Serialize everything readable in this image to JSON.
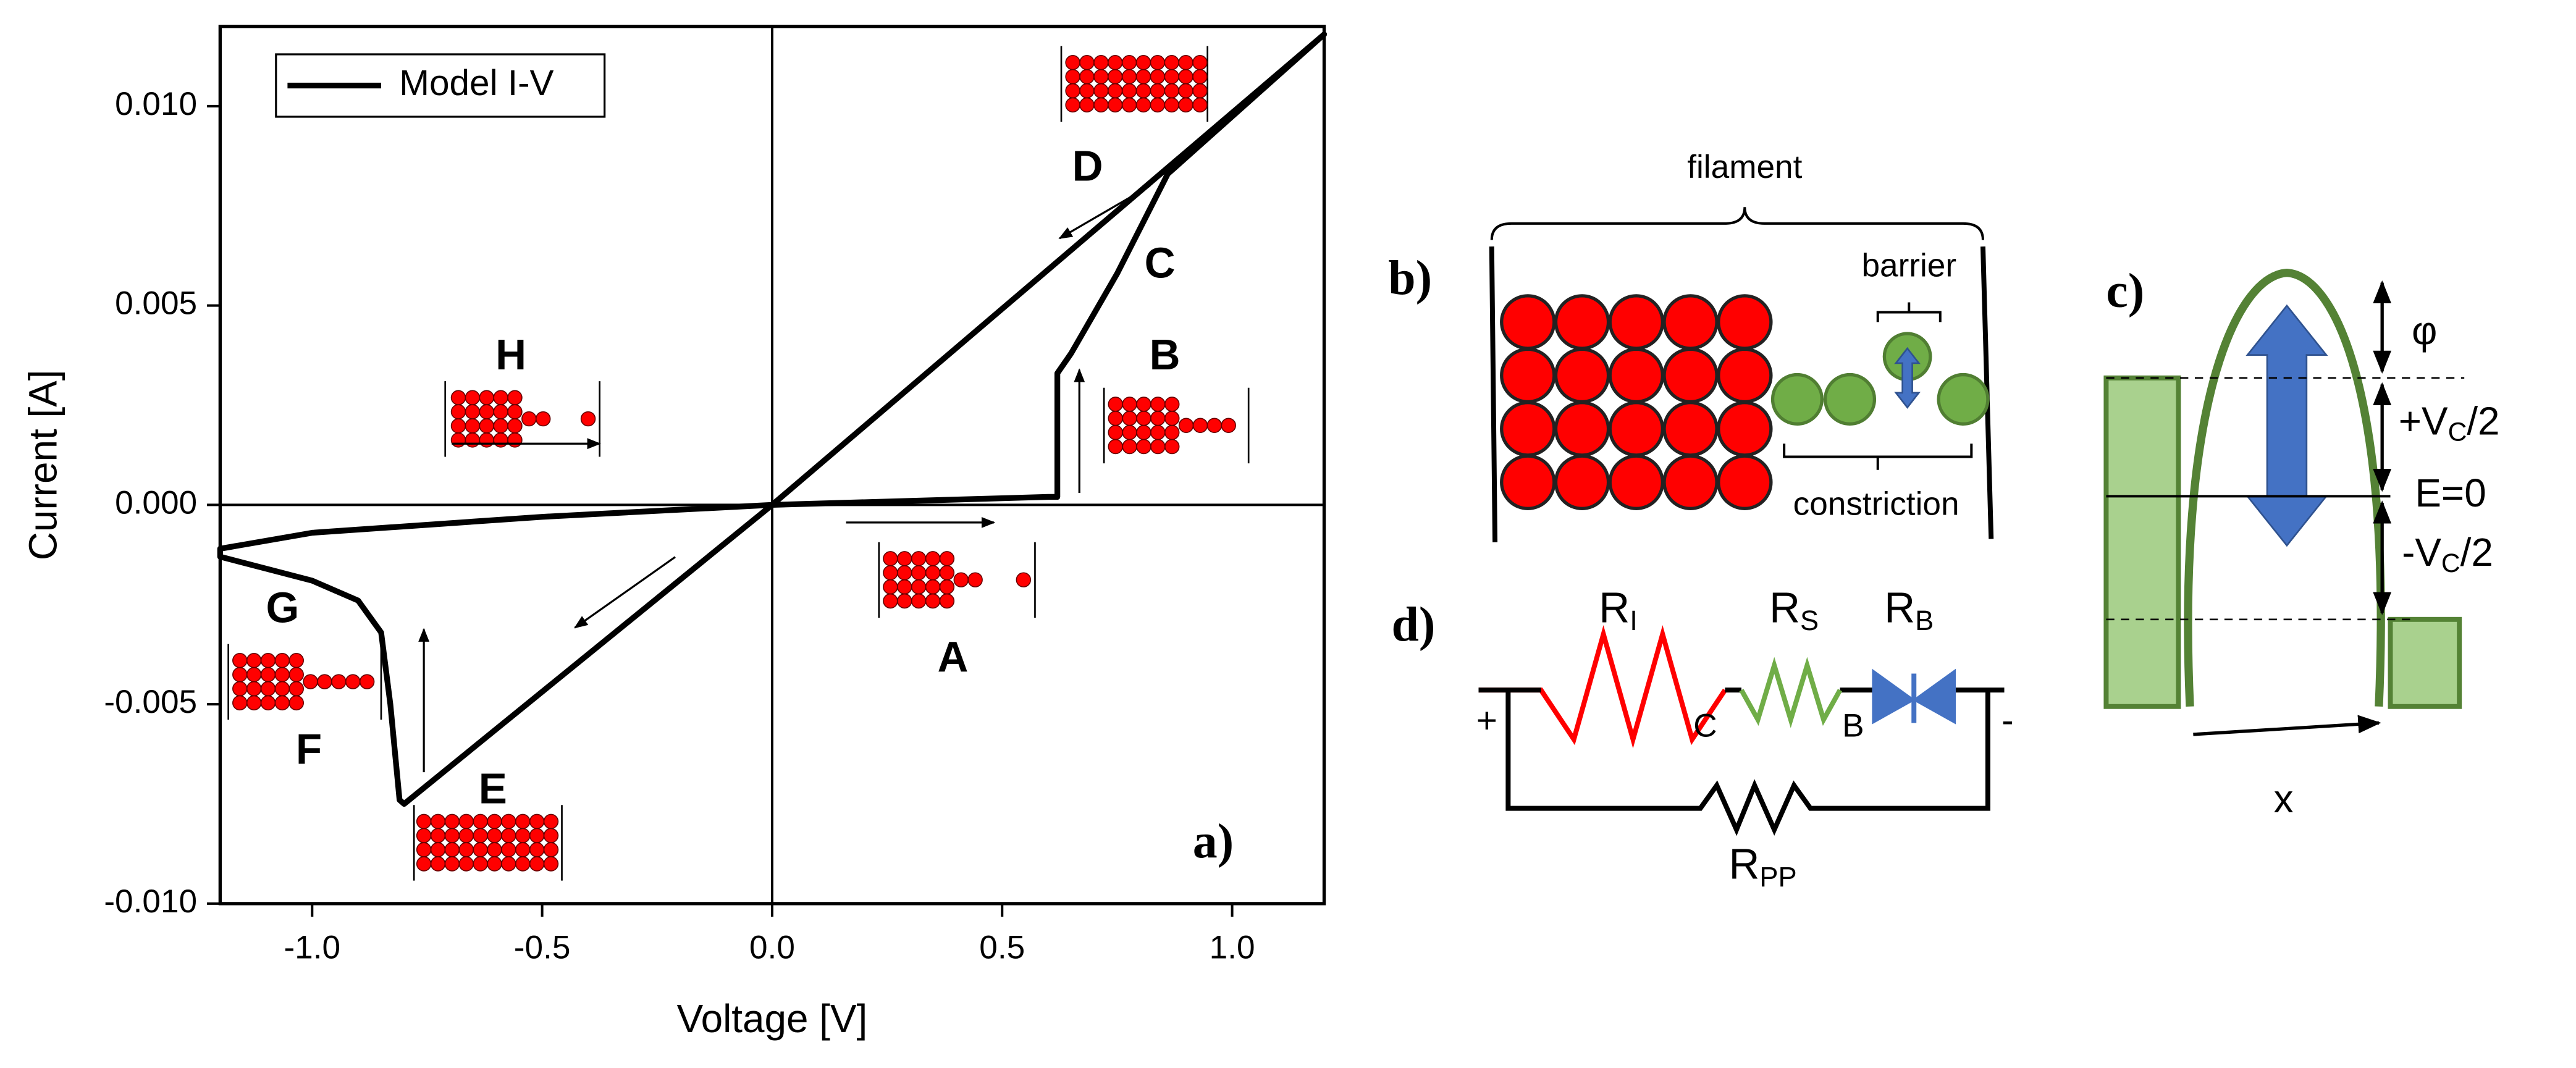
{
  "chart_data": {
    "type": "line",
    "xlabel": "Voltage [V]",
    "ylabel": "Current [A]",
    "panel_label": "a)",
    "xlim": [
      -1.2,
      1.2
    ],
    "ylim": [
      -0.01,
      0.012
    ],
    "xticks": [
      {
        "value": -1,
        "label": "-1.0"
      },
      {
        "value": -0.5,
        "label": "-0.5"
      },
      {
        "value": 0,
        "label": "0.0"
      },
      {
        "value": 0.5,
        "label": "0.5"
      },
      {
        "value": 1,
        "label": "1.0"
      }
    ],
    "yticks": [
      {
        "value": -0.01,
        "label": "-0.010"
      },
      {
        "value": -0.005,
        "label": "-0.005"
      },
      {
        "value": 0,
        "label": "0.000"
      },
      {
        "value": 0.005,
        "label": "0.005"
      },
      {
        "value": 0.01,
        "label": "0.010"
      }
    ],
    "x": [
      0,
      0.3,
      0.6,
      0.62,
      0.62,
      0.65,
      0.75,
      0.86,
      1.2,
      0,
      -0.8,
      -0.81,
      -0.83,
      -0.85,
      -0.9,
      -1.0,
      -1.1,
      -1.2,
      -1.2,
      -1.0,
      -0.5,
      0
    ],
    "series": [
      {
        "name": "Model I-V",
        "color": "#000000",
        "values": [
          0,
          0.0001,
          0.0002,
          0.0002,
          0.0033,
          0.0038,
          0.0058,
          0.0083,
          0.0118,
          0,
          -0.0075,
          -0.0074,
          -0.005,
          -0.0032,
          -0.0024,
          -0.0019,
          -0.0016,
          -0.0013,
          -0.0011,
          -0.0007,
          -0.0003,
          0
        ]
      }
    ],
    "annotations": [
      "A",
      "B",
      "C",
      "D",
      "E",
      "F",
      "G",
      "H"
    ]
  },
  "panel_b": {
    "label": "b)",
    "filament": "filament",
    "barrier": "barrier",
    "constriction": "constriction"
  },
  "panel_c": {
    "label": "c)",
    "phi": "φ",
    "plus_vc2": {
      "main": "+V",
      "sub": "C",
      "tail": "/2"
    },
    "e0": "E=0",
    "minus_vc2": {
      "main": "-V",
      "sub": "C",
      "tail": "/2"
    },
    "x": "x"
  },
  "panel_d": {
    "label": "d)",
    "r_i": {
      "main": "R",
      "sub": "I"
    },
    "r_s": {
      "main": "R",
      "sub": "S"
    },
    "r_b": {
      "main": "R",
      "sub": "B"
    },
    "r_pp": {
      "main": "R",
      "sub": "PP"
    },
    "plus": "+",
    "minus": "-",
    "node_c": "C",
    "node_b": "B"
  }
}
